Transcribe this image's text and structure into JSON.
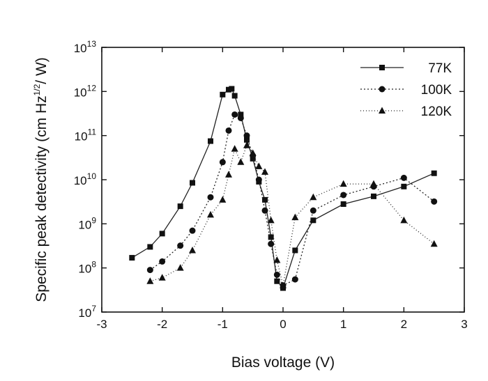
{
  "chart_data": {
    "type": "line",
    "title": "",
    "xlabel": "Bias voltage (V)",
    "ylabel": {
      "main": "Specific peak detectivity (cm Hz",
      "sup": "1/2",
      "tail": "/ W)"
    },
    "xlim": [
      -3,
      3
    ],
    "ylim": [
      10000000.0,
      10000000000000.0
    ],
    "yscale": "log",
    "grid": false,
    "legend_position": "top-right",
    "x_ticks": [
      {
        "value": -3,
        "label": "-3"
      },
      {
        "value": -2,
        "label": "-2"
      },
      {
        "value": -1,
        "label": "-1"
      },
      {
        "value": 0,
        "label": "0"
      },
      {
        "value": 1,
        "label": "1"
      },
      {
        "value": 2,
        "label": "2"
      },
      {
        "value": 3,
        "label": "3"
      }
    ],
    "y_ticks": [
      {
        "exp": 7,
        "base": "10",
        "sup": "7"
      },
      {
        "exp": 8,
        "base": "10",
        "sup": "8"
      },
      {
        "exp": 9,
        "base": "10",
        "sup": "9"
      },
      {
        "exp": 10,
        "base": "10",
        "sup": "10"
      },
      {
        "exp": 11,
        "base": "10",
        "sup": "11"
      },
      {
        "exp": 12,
        "base": "10",
        "sup": "12"
      },
      {
        "exp": 13,
        "base": "10",
        "sup": "13"
      }
    ],
    "series": [
      {
        "name": "77K",
        "marker": "square",
        "dash": "",
        "x": [
          -2.5,
          -2.2,
          -2.0,
          -1.7,
          -1.5,
          -1.2,
          -1.0,
          -0.9,
          -0.85,
          -0.8,
          -0.7,
          -0.6,
          -0.5,
          -0.4,
          -0.3,
          -0.2,
          -0.1,
          0.0,
          0.2,
          0.5,
          1.0,
          1.5,
          2.0,
          2.5
        ],
        "y": [
          170000000.0,
          300000000.0,
          600000000.0,
          2500000000.0,
          8500000000.0,
          75000000000.0,
          850000000000.0,
          1100000000000.0,
          1150000000000.0,
          800000000000.0,
          300000000000.0,
          80000000000.0,
          30000000000.0,
          9000000000.0,
          3500000000.0,
          500000000.0,
          50000000.0,
          35000000.0,
          250000000.0,
          1200000000.0,
          2800000000.0,
          4200000000.0,
          7000000000.0,
          14000000000.0
        ]
      },
      {
        "name": "100K",
        "marker": "circle",
        "dash": "2,3",
        "x": [
          -2.2,
          -2.0,
          -1.7,
          -1.5,
          -1.2,
          -1.0,
          -0.9,
          -0.8,
          -0.7,
          -0.6,
          -0.5,
          -0.4,
          -0.3,
          -0.2,
          -0.1,
          0.0,
          0.2,
          0.5,
          1.0,
          1.5,
          2.0,
          2.5
        ],
        "y": [
          90000000.0,
          140000000.0,
          320000000.0,
          700000000.0,
          4000000000.0,
          25000000000.0,
          130000000000.0,
          300000000000.0,
          250000000000.0,
          100000000000.0,
          35000000000.0,
          10000000000.0,
          2000000000.0,
          350000000.0,
          70000000.0,
          40000000.0,
          55000000.0,
          2000000000.0,
          4500000000.0,
          7000000000.0,
          11000000000.0,
          3200000000.0
        ]
      },
      {
        "name": "120K",
        "marker": "triangle",
        "dash": "1,3",
        "x": [
          -2.2,
          -2.0,
          -1.7,
          -1.5,
          -1.2,
          -1.0,
          -0.9,
          -0.8,
          -0.7,
          -0.6,
          -0.5,
          -0.4,
          -0.3,
          -0.2,
          -0.1,
          0.0,
          0.2,
          0.5,
          1.0,
          1.5,
          2.0,
          2.5
        ],
        "y": [
          50000000.0,
          60000000.0,
          100000000.0,
          250000000.0,
          1600000000.0,
          3500000000.0,
          13000000000.0,
          50000000000.0,
          25000000000.0,
          60000000000.0,
          40000000000.0,
          20000000000.0,
          15000000000.0,
          1200000000.0,
          150000000.0,
          40000000.0,
          1400000000.0,
          4000000000.0,
          8000000000.0,
          8000000000.0,
          1200000000.0,
          350000000.0
        ]
      }
    ]
  }
}
